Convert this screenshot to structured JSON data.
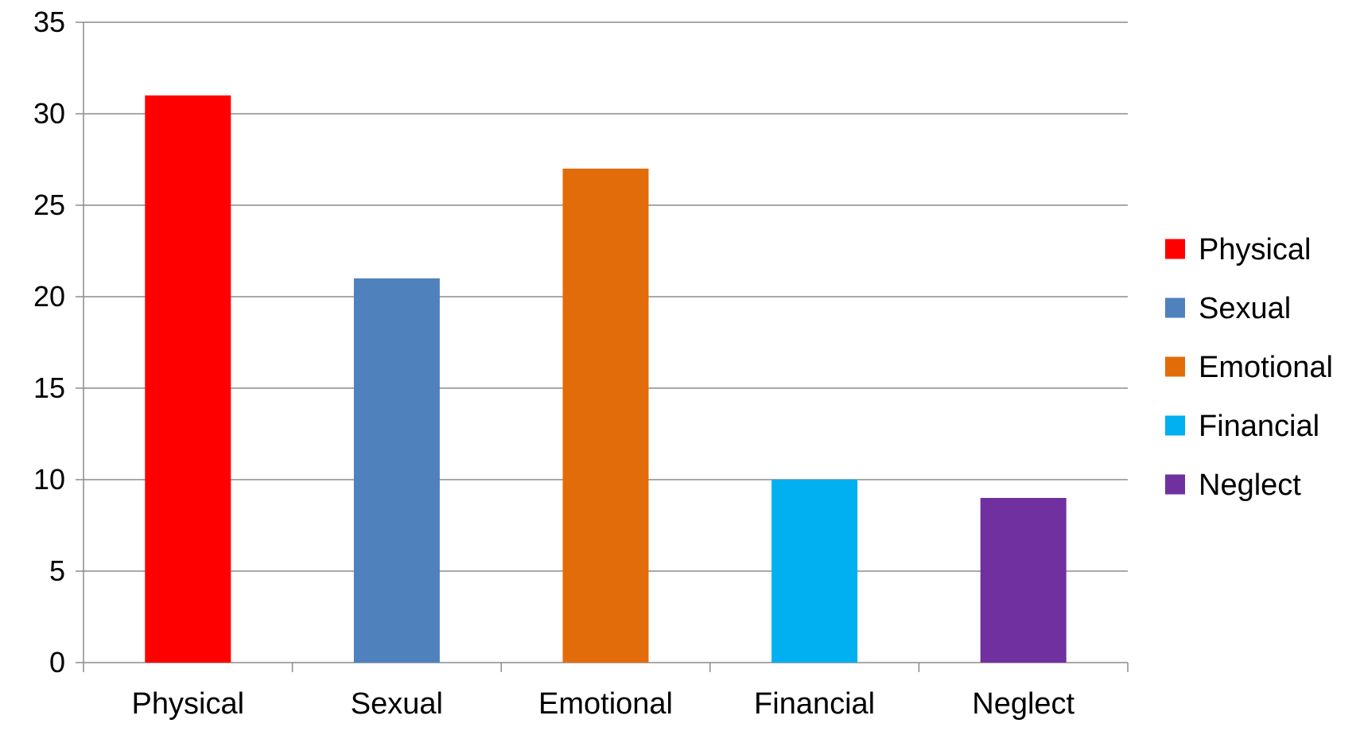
{
  "chart_data": {
    "type": "bar",
    "title": "",
    "xlabel": "",
    "ylabel": "",
    "categories": [
      "Physical",
      "Sexual",
      "Emotional",
      "Financial",
      "Neglect"
    ],
    "values": [
      31,
      21,
      27,
      10,
      9
    ],
    "colors": [
      "#ff0000",
      "#4f81bd",
      "#e36c0a",
      "#00b0f0",
      "#7030a0"
    ],
    "ylim": [
      0,
      35
    ],
    "yticks": [
      0,
      5,
      10,
      15,
      20,
      25,
      30,
      35
    ],
    "ytick_labels": [
      "0",
      "5",
      "10",
      "15",
      "20",
      "25",
      "30",
      "35"
    ],
    "grid": true,
    "legend": {
      "placement": "right",
      "entries": [
        "Physical",
        "Sexual",
        "Emotional",
        "Financial",
        "Neglect"
      ]
    }
  }
}
